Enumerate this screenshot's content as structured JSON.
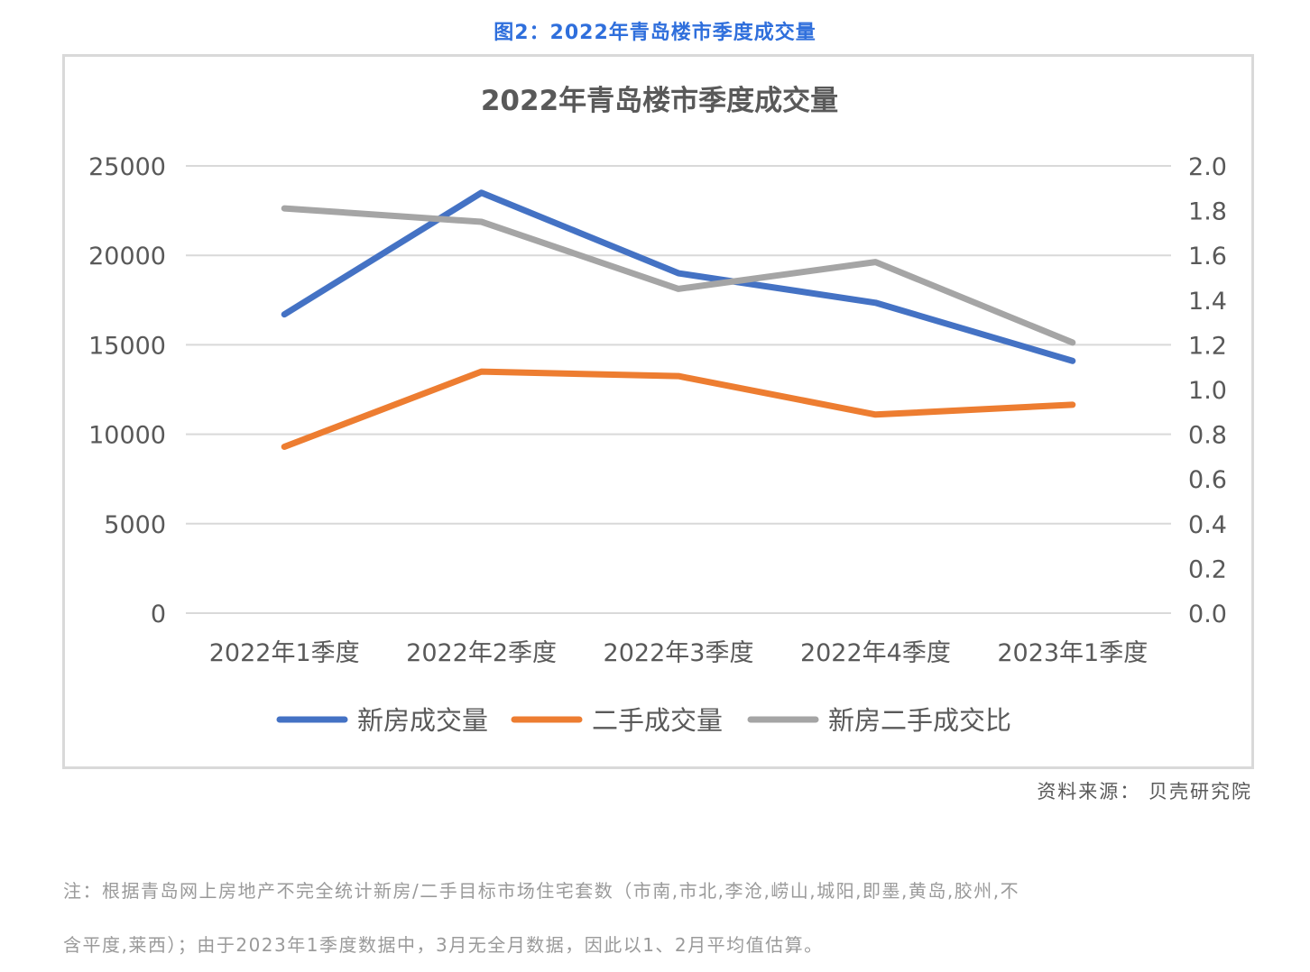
{
  "figure": {
    "caption": "图2：2022年青岛楼市季度成交量",
    "source": "资料来源：  贝壳研究院",
    "note_line1": "注：根据青岛网上房地产不完全统计新房/二手目标市场住宅套数（市南,市北,李沧,崂山,城阳,即墨,黄岛,胶州,不",
    "note_line2": "含平度,莱西）；由于2023年1季度数据中，3月无全月数据，因此以1、2月平均值估算。"
  },
  "colors": {
    "caption": "#2f6fdc",
    "series_new": "#4472c4",
    "series_second": "#ed7d31",
    "series_ratio": "#a5a5a5",
    "grid": "#d9d9d9",
    "frame": "#d9d9d9",
    "axis_text": "#595959"
  },
  "chart_data": {
    "type": "line",
    "title": "2022年青岛楼市季度成交量",
    "categories": [
      "2022年1季度",
      "2022年2季度",
      "2022年3季度",
      "2022年4季度",
      "2023年1季度"
    ],
    "series": [
      {
        "name": "新房成交量",
        "axis": "left",
        "color": "#4472c4",
        "values": [
          16700,
          23500,
          19000,
          17350,
          14100
        ]
      },
      {
        "name": "二手成交量",
        "axis": "left",
        "color": "#ed7d31",
        "values": [
          9300,
          13500,
          13250,
          11100,
          11650
        ]
      },
      {
        "name": "新房二手成交比",
        "axis": "right",
        "color": "#a5a5a5",
        "values": [
          1.81,
          1.75,
          1.45,
          1.57,
          1.21
        ]
      }
    ],
    "xlabel": "",
    "ylabel": "",
    "y_left": {
      "lim": [
        0,
        25000
      ],
      "ticks": [
        "25000",
        "20000",
        "15000",
        "10000",
        "5000",
        "0"
      ]
    },
    "y_right": {
      "lim": [
        0,
        2.0
      ],
      "ticks": [
        "2.0",
        "1.8",
        "1.6",
        "1.4",
        "1.2",
        "1.0",
        "0.8",
        "0.6",
        "0.4",
        "0.2",
        "0.0"
      ]
    },
    "grid": true,
    "legend_position": "bottom"
  }
}
